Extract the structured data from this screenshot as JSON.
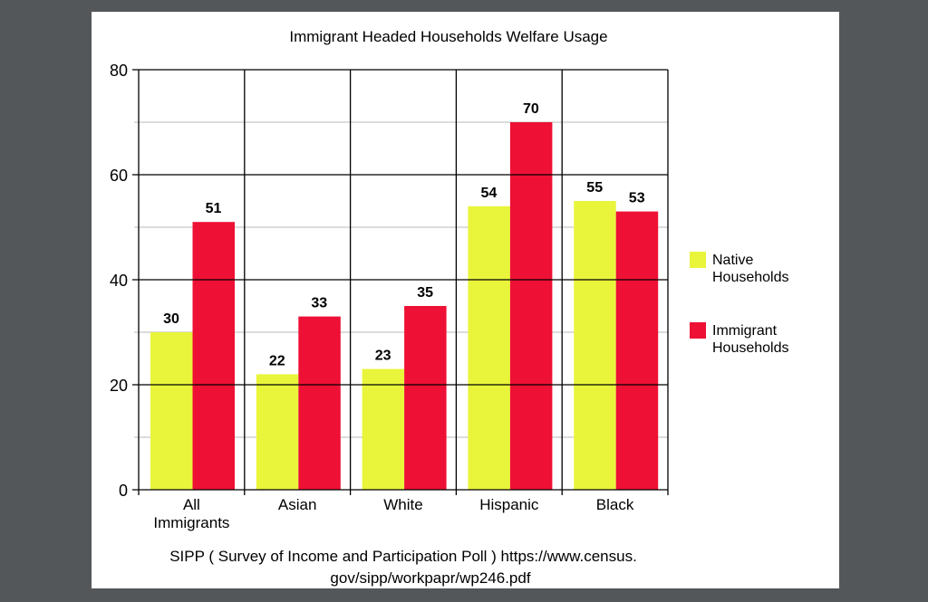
{
  "chart_data": {
    "type": "bar",
    "title": "Immigrant Headed Households Welfare Usage",
    "caption_lines": [
      "SIPP ( Survey of Income and Participation Poll ) https://www.census.",
      "gov/sipp/workpapr/wp246.pdf"
    ],
    "categories": [
      [
        "All",
        "Immigrants"
      ],
      [
        "Asian"
      ],
      [
        "White"
      ],
      [
        "Hispanic"
      ],
      [
        "Black"
      ]
    ],
    "series": [
      {
        "name": "Native Households",
        "name_lines": [
          "Native",
          "Households"
        ],
        "color": "#e9f53b",
        "values": [
          30,
          22,
          23,
          54,
          55
        ]
      },
      {
        "name": "Immigrant Households",
        "name_lines": [
          "Immigrant",
          "Households"
        ],
        "color": "#ee1035",
        "values": [
          51,
          33,
          35,
          70,
          53
        ]
      }
    ],
    "ylim": [
      0,
      80
    ],
    "yticks": [
      0,
      20,
      40,
      60,
      80
    ],
    "minor_grid": [
      10,
      30,
      50,
      70
    ],
    "grid": true,
    "legend": "right",
    "background": "#53575a"
  }
}
